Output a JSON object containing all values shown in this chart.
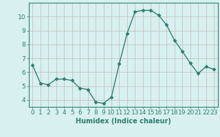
{
  "x": [
    0,
    1,
    2,
    3,
    4,
    5,
    6,
    7,
    8,
    9,
    10,
    11,
    12,
    13,
    14,
    15,
    16,
    17,
    18,
    19,
    20,
    21,
    22,
    23
  ],
  "y": [
    6.5,
    5.2,
    5.1,
    5.5,
    5.5,
    5.4,
    4.85,
    4.75,
    3.85,
    3.75,
    4.2,
    6.6,
    8.8,
    10.35,
    10.45,
    10.45,
    10.1,
    9.4,
    8.3,
    7.5,
    6.65,
    5.9,
    6.4,
    6.2
  ],
  "line_color": "#2d7d6e",
  "marker": "D",
  "marker_size": 2.5,
  "line_width": 1.0,
  "bg_color": "#d8f0f0",
  "grid_color": "#c0b8b8",
  "xlabel": "Humidex (Indice chaleur)",
  "xlabel_fontsize": 7,
  "tick_fontsize": 6.5,
  "ylim": [
    3.5,
    11.0
  ],
  "yticks": [
    4,
    5,
    6,
    7,
    8,
    9,
    10
  ],
  "xticks": [
    0,
    1,
    2,
    3,
    4,
    5,
    6,
    7,
    8,
    9,
    10,
    11,
    12,
    13,
    14,
    15,
    16,
    17,
    18,
    19,
    20,
    21,
    22,
    23
  ]
}
